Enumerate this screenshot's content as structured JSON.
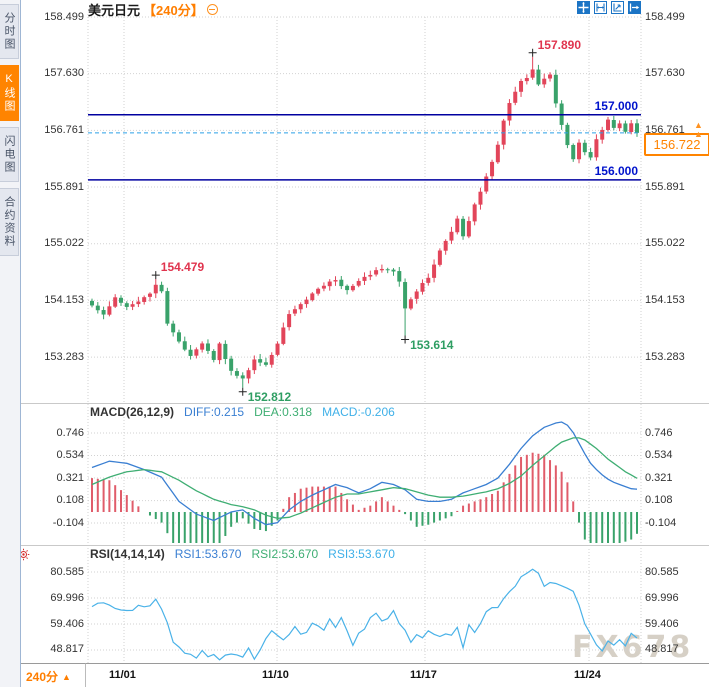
{
  "header": {
    "title": "美元日元",
    "interval_tag": "【240分】"
  },
  "sidebar": {
    "tabs": [
      {
        "label": "分时图",
        "active": false
      },
      {
        "label": "K线图",
        "active": true
      },
      {
        "label": "闪电图",
        "active": false
      },
      {
        "label": "合约资料",
        "active": false
      }
    ]
  },
  "toolbar": {
    "icons": [
      "crosshair",
      "fit-range",
      "axis-scale",
      "exit"
    ]
  },
  "footer": {
    "interval_label": "240分",
    "arrow": "▲"
  },
  "watermark": "FX678",
  "colors": {
    "up": "#e2455a",
    "down": "#39a26a",
    "level_line": "#0000a0",
    "level_text": "#0013cc",
    "current_line": "#2ba0e8",
    "current_text": "#ff8400",
    "diff": "#3a7fd2",
    "dea": "#3fae73",
    "rsi": "#4ab2e8",
    "accent": "#ff7e00",
    "toolbar_blue": "#1b74c5",
    "grid": "#d2d2d2"
  },
  "chart_data": [
    {
      "type": "candlestick",
      "symbol": "美元日元",
      "interval": "240分",
      "bars": 95,
      "y_axis_labels": [
        158.499,
        157.63,
        156.761,
        155.891,
        155.022,
        154.153,
        153.283
      ],
      "x_axis_labels": [
        "11/01",
        "11/10",
        "11/17",
        "11/24"
      ],
      "levels": [
        {
          "value": 157.0,
          "label": "157.000"
        },
        {
          "value": 156.0,
          "label": "156.000"
        }
      ],
      "current_price": 156.722,
      "markers": [
        {
          "bar": 11,
          "price": 154.479,
          "label": "154.479",
          "color": "red",
          "pos": "above"
        },
        {
          "bar": 26,
          "price": 152.812,
          "label": "152.812",
          "color": "green",
          "pos": "below"
        },
        {
          "bar": 54,
          "price": 153.614,
          "label": "153.614",
          "color": "green",
          "pos": "below"
        },
        {
          "bar": 76,
          "price": 157.89,
          "label": "157.890",
          "color": "red",
          "pos": "above"
        }
      ],
      "close_waypoints": [
        [
          0,
          154.1
        ],
        [
          2,
          153.92
        ],
        [
          4,
          154.18
        ],
        [
          6,
          154.05
        ],
        [
          8,
          154.15
        ],
        [
          10,
          154.28
        ],
        [
          11,
          154.38
        ],
        [
          12,
          154.3
        ],
        [
          13,
          153.8
        ],
        [
          15,
          153.5
        ],
        [
          17,
          153.3
        ],
        [
          19,
          153.48
        ],
        [
          21,
          153.25
        ],
        [
          22,
          153.5
        ],
        [
          24,
          153.05
        ],
        [
          26,
          152.95
        ],
        [
          28,
          153.25
        ],
        [
          30,
          153.15
        ],
        [
          32,
          153.5
        ],
        [
          34,
          153.95
        ],
        [
          36,
          154.12
        ],
        [
          38,
          154.25
        ],
        [
          40,
          154.4
        ],
        [
          42,
          154.45
        ],
        [
          44,
          154.3
        ],
        [
          46,
          154.45
        ],
        [
          48,
          154.55
        ],
        [
          50,
          154.65
        ],
        [
          52,
          154.6
        ],
        [
          53,
          154.45
        ],
        [
          54,
          154.05
        ],
        [
          55,
          154.15
        ],
        [
          56,
          154.3
        ],
        [
          58,
          154.5
        ],
        [
          60,
          154.9
        ],
        [
          62,
          155.2
        ],
        [
          63,
          155.4
        ],
        [
          64,
          155.15
        ],
        [
          65,
          155.35
        ],
        [
          66,
          155.6
        ],
        [
          68,
          156.05
        ],
        [
          70,
          156.55
        ],
        [
          71,
          156.9
        ],
        [
          72,
          157.2
        ],
        [
          73,
          157.35
        ],
        [
          74,
          157.5
        ],
        [
          75,
          157.55
        ],
        [
          76,
          157.7
        ],
        [
          77,
          157.45
        ],
        [
          78,
          157.55
        ],
        [
          79,
          157.6
        ],
        [
          80,
          157.15
        ],
        [
          81,
          156.85
        ],
        [
          82,
          156.55
        ],
        [
          83,
          156.32
        ],
        [
          84,
          156.55
        ],
        [
          85,
          156.45
        ],
        [
          86,
          156.35
        ],
        [
          87,
          156.6
        ],
        [
          88,
          156.78
        ],
        [
          89,
          156.92
        ],
        [
          90,
          156.8
        ],
        [
          91,
          156.88
        ],
        [
          92,
          156.75
        ],
        [
          93,
          156.85
        ],
        [
          94,
          156.722
        ]
      ]
    },
    {
      "type": "macd",
      "params": "MACD(26,12,9)",
      "diff": 0.215,
      "dea": 0.318,
      "macd": -0.206,
      "diff_text": "DIFF:0.215",
      "dea_text": "DEA:0.318",
      "macd_text": "MACD:-0.206",
      "y_axis_labels": [
        0.746,
        0.534,
        0.321,
        0.108,
        -0.104
      ],
      "waypoints": [
        [
          0,
          0.42,
          0.26
        ],
        [
          3,
          0.48,
          0.33
        ],
        [
          6,
          0.46,
          0.38
        ],
        [
          9,
          0.4,
          0.4
        ],
        [
          12,
          0.33,
          0.38
        ],
        [
          15,
          0.1,
          0.3
        ],
        [
          18,
          -0.02,
          0.2
        ],
        [
          21,
          -0.08,
          0.12
        ],
        [
          24,
          0.0,
          0.07
        ],
        [
          26,
          0.02,
          0.05
        ],
        [
          28,
          -0.06,
          0.02
        ],
        [
          30,
          -0.12,
          -0.03
        ],
        [
          32,
          -0.1,
          -0.06
        ],
        [
          34,
          0.02,
          -0.05
        ],
        [
          36,
          0.1,
          -0.01
        ],
        [
          38,
          0.16,
          0.04
        ],
        [
          40,
          0.21,
          0.09
        ],
        [
          42,
          0.26,
          0.14
        ],
        [
          44,
          0.23,
          0.17
        ],
        [
          46,
          0.18,
          0.17
        ],
        [
          48,
          0.22,
          0.19
        ],
        [
          50,
          0.28,
          0.21
        ],
        [
          52,
          0.26,
          0.23
        ],
        [
          54,
          0.21,
          0.22
        ],
        [
          56,
          0.12,
          0.19
        ],
        [
          58,
          0.1,
          0.16
        ],
        [
          60,
          0.1,
          0.14
        ],
        [
          62,
          0.12,
          0.14
        ],
        [
          64,
          0.18,
          0.15
        ],
        [
          66,
          0.22,
          0.17
        ],
        [
          68,
          0.26,
          0.19
        ],
        [
          70,
          0.32,
          0.22
        ],
        [
          72,
          0.45,
          0.27
        ],
        [
          74,
          0.6,
          0.34
        ],
        [
          76,
          0.72,
          0.44
        ],
        [
          78,
          0.8,
          0.53
        ],
        [
          80,
          0.84,
          0.62
        ],
        [
          81,
          0.85,
          0.66
        ],
        [
          82,
          0.82,
          0.68
        ],
        [
          83,
          0.75,
          0.7
        ],
        [
          84,
          0.65,
          0.7
        ],
        [
          85,
          0.55,
          0.68
        ],
        [
          86,
          0.46,
          0.64
        ],
        [
          87,
          0.4,
          0.6
        ],
        [
          88,
          0.35,
          0.55
        ],
        [
          89,
          0.31,
          0.5
        ],
        [
          90,
          0.28,
          0.46
        ],
        [
          91,
          0.26,
          0.42
        ],
        [
          92,
          0.24,
          0.38
        ],
        [
          93,
          0.22,
          0.35
        ],
        [
          94,
          0.215,
          0.318
        ]
      ]
    },
    {
      "type": "rsi",
      "params": "RSI(14,14,14)",
      "rsi1": 53.67,
      "rsi2": 53.67,
      "rsi3": 53.67,
      "rsi1_text": "RSI1:53.670",
      "rsi2_text": "RSI2:53.670",
      "rsi3_text": "RSI3:53.670",
      "y_axis_labels": [
        80.585,
        69.996,
        59.406,
        48.817
      ],
      "waypoints": [
        [
          0,
          66
        ],
        [
          2,
          68
        ],
        [
          4,
          66
        ],
        [
          6,
          65.5
        ],
        [
          8,
          66.5
        ],
        [
          10,
          67
        ],
        [
          11,
          69
        ],
        [
          13,
          60
        ],
        [
          14,
          52
        ],
        [
          16,
          47
        ],
        [
          18,
          46
        ],
        [
          19,
          49
        ],
        [
          20,
          47
        ],
        [
          22,
          45
        ],
        [
          24,
          48
        ],
        [
          26,
          46
        ],
        [
          27,
          49
        ],
        [
          28,
          45.5
        ],
        [
          30,
          53
        ],
        [
          31,
          57
        ],
        [
          33,
          54
        ],
        [
          35,
          58
        ],
        [
          36,
          55
        ],
        [
          38,
          59
        ],
        [
          40,
          57
        ],
        [
          41,
          61
        ],
        [
          42,
          58
        ],
        [
          43,
          62
        ],
        [
          44,
          56
        ],
        [
          45,
          51
        ],
        [
          46,
          55
        ],
        [
          47,
          58
        ],
        [
          48,
          62
        ],
        [
          49,
          64
        ],
        [
          50,
          61
        ],
        [
          52,
          64
        ],
        [
          53,
          60
        ],
        [
          54,
          56
        ],
        [
          55,
          52
        ],
        [
          56,
          55
        ],
        [
          57,
          53
        ],
        [
          58,
          56
        ],
        [
          60,
          54
        ],
        [
          61,
          56
        ],
        [
          62,
          54
        ],
        [
          63,
          57
        ],
        [
          64,
          50
        ],
        [
          65,
          59
        ],
        [
          66,
          57
        ],
        [
          67,
          60
        ],
        [
          68,
          64
        ],
        [
          69,
          67
        ],
        [
          70,
          66
        ],
        [
          71,
          69
        ],
        [
          72,
          72
        ],
        [
          73,
          75
        ],
        [
          74,
          78
        ],
        [
          75,
          80
        ],
        [
          76,
          81
        ],
        [
          77,
          79
        ],
        [
          78,
          75
        ],
        [
          79,
          77
        ],
        [
          80,
          76
        ],
        [
          81,
          74
        ],
        [
          82,
          75
        ],
        [
          83,
          73
        ],
        [
          84,
          66
        ],
        [
          85,
          60
        ],
        [
          86,
          55
        ],
        [
          87,
          51
        ],
        [
          88,
          49
        ],
        [
          89,
          53
        ],
        [
          90,
          50
        ],
        [
          91,
          54
        ],
        [
          92,
          51
        ],
        [
          93,
          56
        ],
        [
          94,
          53.67
        ]
      ]
    }
  ]
}
